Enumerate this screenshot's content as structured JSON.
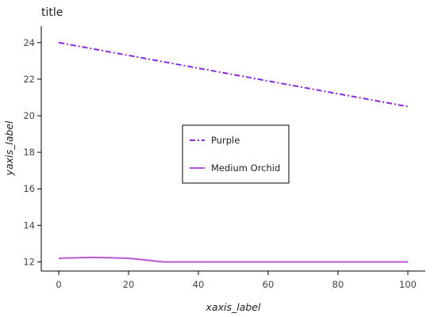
{
  "chart_data": {
    "type": "line",
    "title": "title",
    "xlabel": "xaxis_label",
    "ylabel": "yaxis_label",
    "xlim": [
      -5,
      105
    ],
    "ylim": [
      11.5,
      24.9
    ],
    "x_ticks": [
      0,
      20,
      40,
      60,
      80,
      100
    ],
    "y_ticks": [
      12,
      14,
      16,
      18,
      20,
      22,
      24
    ],
    "grid": false,
    "legend_position": "center-right",
    "series": [
      {
        "name": "Purple",
        "color": "#8a2be2",
        "dash": "dash-dot",
        "x": [
          0,
          100
        ],
        "y": [
          24.0,
          20.5
        ]
      },
      {
        "name": "Medium Orchid",
        "color": "#ba55d3",
        "dash": "solid",
        "x": [
          0,
          10,
          20,
          30,
          40,
          50,
          60,
          70,
          80,
          90,
          100
        ],
        "y": [
          12.2,
          12.25,
          12.2,
          12.0,
          12.0,
          12.0,
          12.0,
          12.0,
          12.0,
          12.0,
          12.0
        ]
      }
    ]
  }
}
